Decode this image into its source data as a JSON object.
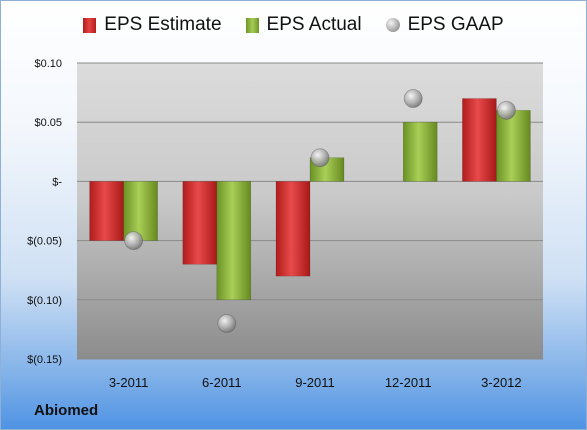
{
  "company": "Abiomed",
  "colors": {
    "estimate": "#d42b2b",
    "actual": "#8db33d",
    "gaap": "#b8b8b8"
  },
  "chart_data": {
    "type": "bar",
    "categories": [
      "3-2011",
      "6-2011",
      "9-2011",
      "12-2011",
      "3-2012"
    ],
    "series": [
      {
        "name": "EPS Estimate",
        "kind": "bar",
        "values": [
          -0.05,
          -0.07,
          -0.08,
          null,
          0.07
        ]
      },
      {
        "name": "EPS Actual",
        "kind": "bar",
        "values": [
          -0.05,
          -0.1,
          0.02,
          0.05,
          0.06
        ]
      },
      {
        "name": "EPS GAAP",
        "kind": "scatter",
        "values": [
          -0.05,
          -0.12,
          0.02,
          0.07,
          0.06
        ]
      }
    ],
    "ylim": [
      -0.15,
      0.1
    ],
    "yticks": [
      0.1,
      0.05,
      0,
      -0.05,
      -0.1,
      -0.15
    ],
    "ytick_labels": [
      "$0.10",
      "$0.05",
      "$-",
      "$(0.05)",
      "$(0.10)",
      "$(0.15)"
    ],
    "legend_position": "top",
    "grid": true
  }
}
